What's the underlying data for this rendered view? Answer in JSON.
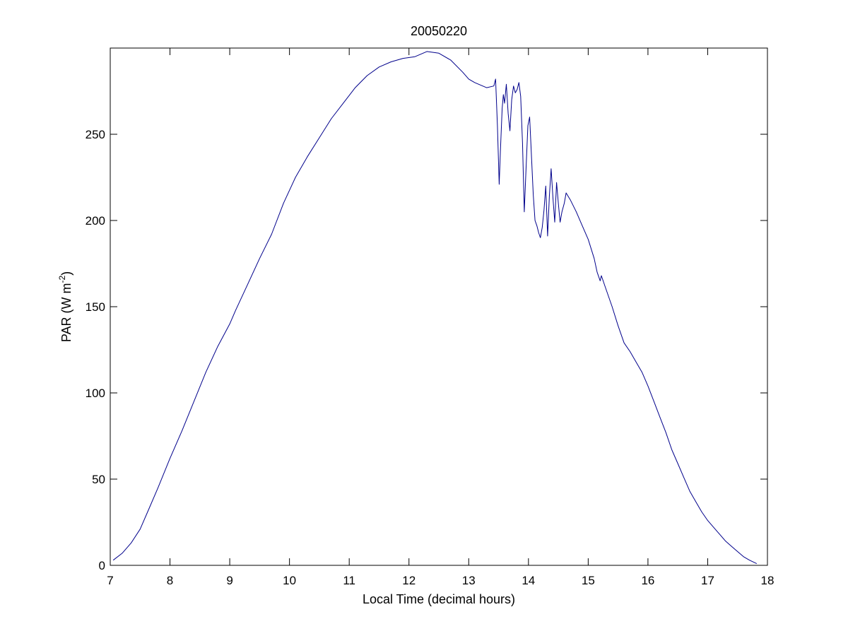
{
  "chart_data": {
    "type": "line",
    "title": "20050220",
    "xlabel": "Local Time (decimal hours)",
    "ylabel_text": "PAR (W m",
    "ylabel_superscript": "-2",
    "ylabel_close": ")",
    "xlim": [
      7,
      18
    ],
    "ylim": [
      0,
      300
    ],
    "xticks": [
      7,
      8,
      9,
      10,
      11,
      12,
      13,
      14,
      15,
      16,
      17,
      18
    ],
    "yticks": [
      0,
      50,
      100,
      150,
      200,
      250
    ],
    "grid": false,
    "series": [
      {
        "color": "#00008b",
        "points": [
          [
            7.05,
            3
          ],
          [
            7.2,
            7
          ],
          [
            7.35,
            13
          ],
          [
            7.5,
            21
          ],
          [
            7.65,
            33
          ],
          [
            7.8,
            45
          ],
          [
            8.0,
            62
          ],
          [
            8.2,
            78
          ],
          [
            8.4,
            95
          ],
          [
            8.6,
            112
          ],
          [
            8.8,
            127
          ],
          [
            9.0,
            140
          ],
          [
            9.1,
            148
          ],
          [
            9.3,
            163
          ],
          [
            9.5,
            178
          ],
          [
            9.7,
            192
          ],
          [
            9.9,
            210
          ],
          [
            10.1,
            225
          ],
          [
            10.3,
            237
          ],
          [
            10.5,
            248
          ],
          [
            10.7,
            259
          ],
          [
            10.9,
            268
          ],
          [
            11.1,
            277
          ],
          [
            11.3,
            284
          ],
          [
            11.5,
            289
          ],
          [
            11.7,
            292
          ],
          [
            11.9,
            294
          ],
          [
            12.1,
            295
          ],
          [
            12.3,
            298
          ],
          [
            12.5,
            297
          ],
          [
            12.7,
            293
          ],
          [
            12.9,
            286
          ],
          [
            13.0,
            282
          ],
          [
            13.1,
            280
          ],
          [
            13.3,
            277
          ],
          [
            13.42,
            278
          ],
          [
            13.45,
            282
          ],
          [
            13.48,
            255
          ],
          [
            13.51,
            221
          ],
          [
            13.53,
            240
          ],
          [
            13.56,
            265
          ],
          [
            13.58,
            273
          ],
          [
            13.6,
            268
          ],
          [
            13.63,
            279
          ],
          [
            13.66,
            262
          ],
          [
            13.69,
            252
          ],
          [
            13.72,
            270
          ],
          [
            13.75,
            278
          ],
          [
            13.78,
            274
          ],
          [
            13.81,
            276
          ],
          [
            13.84,
            280
          ],
          [
            13.87,
            272
          ],
          [
            13.9,
            245
          ],
          [
            13.93,
            205
          ],
          [
            13.96,
            230
          ],
          [
            13.99,
            255
          ],
          [
            14.02,
            260
          ],
          [
            14.05,
            238
          ],
          [
            14.08,
            215
          ],
          [
            14.11,
            200
          ],
          [
            14.14,
            197
          ],
          [
            14.17,
            193
          ],
          [
            14.2,
            190
          ],
          [
            14.23,
            196
          ],
          [
            14.26,
            206
          ],
          [
            14.29,
            220
          ],
          [
            14.32,
            191
          ],
          [
            14.35,
            214
          ],
          [
            14.38,
            230
          ],
          [
            14.41,
            213
          ],
          [
            14.44,
            199
          ],
          [
            14.47,
            222
          ],
          [
            14.5,
            210
          ],
          [
            14.53,
            199
          ],
          [
            14.56,
            205
          ],
          [
            14.6,
            210
          ],
          [
            14.63,
            216
          ],
          [
            14.7,
            212
          ],
          [
            14.8,
            205
          ],
          [
            14.9,
            197
          ],
          [
            15.0,
            189
          ],
          [
            15.1,
            178
          ],
          [
            15.15,
            170
          ],
          [
            15.2,
            165
          ],
          [
            15.22,
            168
          ],
          [
            15.3,
            160
          ],
          [
            15.4,
            150
          ],
          [
            15.5,
            139
          ],
          [
            15.6,
            129
          ],
          [
            15.7,
            124
          ],
          [
            15.8,
            118
          ],
          [
            15.9,
            112
          ],
          [
            16.0,
            104
          ],
          [
            16.1,
            95
          ],
          [
            16.2,
            86
          ],
          [
            16.3,
            77
          ],
          [
            16.4,
            67
          ],
          [
            16.5,
            59
          ],
          [
            16.6,
            51
          ],
          [
            16.7,
            43
          ],
          [
            16.8,
            37
          ],
          [
            16.9,
            31
          ],
          [
            17.0,
            26
          ],
          [
            17.1,
            22
          ],
          [
            17.2,
            18
          ],
          [
            17.3,
            14
          ],
          [
            17.4,
            11
          ],
          [
            17.5,
            8
          ],
          [
            17.6,
            5
          ],
          [
            17.7,
            3
          ],
          [
            17.82,
            1
          ]
        ]
      }
    ]
  }
}
